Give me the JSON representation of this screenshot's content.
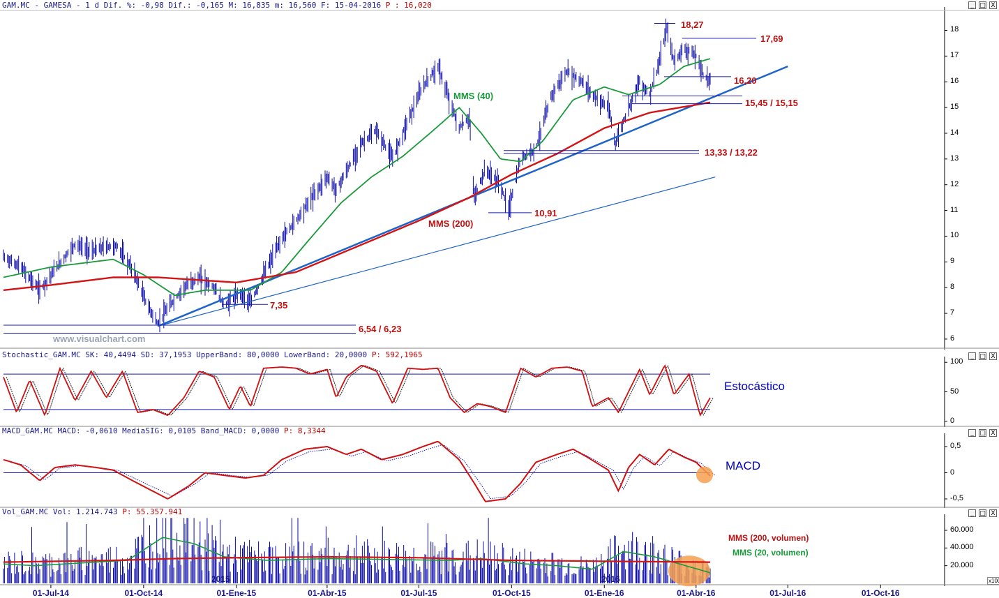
{
  "headers": {
    "price": {
      "series": "GAM.MC - GAMESA -",
      "rest": " 1 d Dif. %: -0,98 Dif.: -0,165 M: 16,835 m: 16,560 F: 15-04-2016",
      "p_label": "P : 16,020"
    },
    "stochastic": {
      "text": "Stochastic_GAM.MC SK: 40,4494 SD: 37,1953 UpperBand: 80,0000 LowerBand: 20,0000",
      "p_label": "P: 592,1965"
    },
    "macd": {
      "text": "MACD_GAM.MC MACD: -0,0610 MediaSIG: 0,0105 Band_MACD: 0,0000",
      "p_label": "P: 8,3344"
    },
    "volume": {
      "text": "Vol_GAM.MC Vol: 1.214.743",
      "p_label": "P: 55.357.941"
    }
  },
  "window_controls": {
    "minimize": "_",
    "maximize": "□",
    "close": "X"
  },
  "watermark": "www.visualchart.com",
  "x_axis_labels": [
    "01-Jul-14",
    "01-Oct-14",
    "01-Ene-15",
    "01-Abr-15",
    "01-Jul-15",
    "01-Oct-15",
    "01-Ene-16",
    "01-Abr-16",
    "01-Jul-16",
    "01-Oct-16"
  ],
  "year_markers": [
    "2015",
    "2016"
  ],
  "volume_unit": "x100",
  "colors": {
    "bars": "#0a0aa8",
    "mms40": "#1a9a3a",
    "mms200": "#d41414",
    "trend": "#1e64c8",
    "level_text": "#c01010",
    "axis_text": "#1a1a8c",
    "highlight": "#f5a050"
  },
  "chart_data": [
    {
      "type": "ohlc",
      "panel": "price",
      "ylim": [
        5.7,
        18.8
      ],
      "yticks": [
        6,
        7,
        8,
        9,
        10,
        11,
        12,
        13,
        14,
        15,
        16,
        17,
        18
      ],
      "date_range": [
        "2014-05-15",
        "2016-04-15"
      ],
      "close_points": [
        [
          "2014-05-15",
          9.2
        ],
        [
          "2014-06-01",
          8.8
        ],
        [
          "2014-06-20",
          7.9
        ],
        [
          "2014-07-05",
          8.7
        ],
        [
          "2014-07-25",
          9.7
        ],
        [
          "2014-08-10",
          9.4
        ],
        [
          "2014-08-25",
          9.6
        ],
        [
          "2014-09-05",
          9.6
        ],
        [
          "2014-09-20",
          8.7
        ],
        [
          "2014-10-05",
          7.3
        ],
        [
          "2014-10-15",
          6.6
        ],
        [
          "2014-10-25",
          7.2
        ],
        [
          "2014-11-10",
          8.0
        ],
        [
          "2014-11-25",
          8.4
        ],
        [
          "2014-12-10",
          8.0
        ],
        [
          "2014-12-20",
          7.3
        ],
        [
          "2015-01-05",
          7.8
        ],
        [
          "2015-01-15",
          7.4
        ],
        [
          "2015-02-01",
          8.8
        ],
        [
          "2015-02-15",
          9.9
        ],
        [
          "2015-03-01",
          10.6
        ],
        [
          "2015-03-15",
          11.4
        ],
        [
          "2015-04-01",
          12.3
        ],
        [
          "2015-04-10",
          11.8
        ],
        [
          "2015-04-20",
          12.5
        ],
        [
          "2015-05-05",
          13.6
        ],
        [
          "2015-05-20",
          14.1
        ],
        [
          "2015-06-05",
          13.0
        ],
        [
          "2015-06-20",
          14.5
        ],
        [
          "2015-07-05",
          15.8
        ],
        [
          "2015-07-20",
          16.6
        ],
        [
          "2015-08-01",
          15.2
        ],
        [
          "2015-08-10",
          14.2
        ],
        [
          "2015-08-20",
          14.6
        ],
        [
          "2015-08-25",
          11.5
        ],
        [
          "2015-09-05",
          12.6
        ],
        [
          "2015-09-20",
          12.0
        ],
        [
          "2015-09-28",
          11.0
        ],
        [
          "2015-10-10",
          13.0
        ],
        [
          "2015-10-25",
          13.4
        ],
        [
          "2015-11-10",
          15.5
        ],
        [
          "2015-11-25",
          16.4
        ],
        [
          "2015-12-10",
          16.0
        ],
        [
          "2015-12-20",
          15.5
        ],
        [
          "2016-01-05",
          15.0
        ],
        [
          "2016-01-12",
          13.6
        ],
        [
          "2016-01-25",
          15.0
        ],
        [
          "2016-02-05",
          16.0
        ],
        [
          "2016-02-15",
          15.5
        ],
        [
          "2016-02-25",
          16.8
        ],
        [
          "2016-03-03",
          18.1
        ],
        [
          "2016-03-10",
          16.8
        ],
        [
          "2016-03-20",
          17.3
        ],
        [
          "2016-04-01",
          17.0
        ],
        [
          "2016-04-08",
          16.3
        ],
        [
          "2016-04-15",
          16.0
        ]
      ],
      "series": [
        {
          "name": "MMS (40)",
          "points": [
            [
              "2014-05-15",
              8.4
            ],
            [
              "2014-07-01",
              8.8
            ],
            [
              "2014-09-01",
              9.1
            ],
            [
              "2014-10-01",
              8.5
            ],
            [
              "2014-11-01",
              7.7
            ],
            [
              "2014-12-01",
              7.9
            ],
            [
              "2015-01-15",
              7.9
            ],
            [
              "2015-02-15",
              8.6
            ],
            [
              "2015-03-15",
              9.9
            ],
            [
              "2015-04-15",
              11.3
            ],
            [
              "2015-05-15",
              12.3
            ],
            [
              "2015-06-15",
              13.1
            ],
            [
              "2015-07-15",
              14.1
            ],
            [
              "2015-08-10",
              15.0
            ],
            [
              "2015-09-01",
              14.0
            ],
            [
              "2015-09-20",
              13.0
            ],
            [
              "2015-10-10",
              12.9
            ],
            [
              "2015-11-01",
              13.7
            ],
            [
              "2015-12-01",
              15.3
            ],
            [
              "2016-01-01",
              15.8
            ],
            [
              "2016-01-25",
              15.5
            ],
            [
              "2016-02-25",
              15.9
            ],
            [
              "2016-03-20",
              16.6
            ],
            [
              "2016-04-15",
              16.9
            ]
          ]
        },
        {
          "name": "MMS (200)",
          "points": [
            [
              "2014-05-15",
              7.9
            ],
            [
              "2014-07-01",
              8.1
            ],
            [
              "2014-09-01",
              8.4
            ],
            [
              "2014-10-15",
              8.4
            ],
            [
              "2015-01-01",
              8.2
            ],
            [
              "2015-03-01",
              8.6
            ],
            [
              "2015-05-01",
              9.6
            ],
            [
              "2015-07-01",
              10.6
            ],
            [
              "2015-08-20",
              11.5
            ],
            [
              "2015-10-01",
              12.4
            ],
            [
              "2015-11-15",
              13.2
            ],
            [
              "2016-01-01",
              14.2
            ],
            [
              "2016-02-15",
              14.8
            ],
            [
              "2016-04-15",
              15.2
            ]
          ]
        }
      ],
      "trendlines": [
        {
          "from": [
            "2014-10-15",
            6.5
          ],
          "to": [
            "2016-07-01",
            16.6
          ]
        },
        {
          "from": [
            "2014-10-15",
            6.5
          ],
          "to": [
            "2016-04-20",
            12.3
          ]
        }
      ],
      "levels": [
        {
          "label": "18,27",
          "value": 18.27
        },
        {
          "label": "17,69",
          "value": 17.69
        },
        {
          "label": "16,20",
          "value": 16.2
        },
        {
          "label": "15,45 / 15,15",
          "values": [
            15.45,
            15.15
          ]
        },
        {
          "label": "13,33 / 13,22",
          "values": [
            13.33,
            13.22
          ]
        },
        {
          "label": "10,91",
          "value": 10.91
        },
        {
          "label": "7,35",
          "value": 7.35
        },
        {
          "label": "6,54 / 6,23",
          "values": [
            6.54,
            6.23
          ]
        }
      ],
      "annotations": [
        "MMS (40)",
        "MMS (200)"
      ]
    },
    {
      "type": "line",
      "panel": "stochastic",
      "ylim": [
        -5,
        105
      ],
      "yticks": [
        0,
        50,
        100
      ],
      "bands": [
        80,
        20
      ],
      "annotation": "Estocástico",
      "series": [
        {
          "name": "SK",
          "points": [
            [
              "2014-05-15",
              75
            ],
            [
              "2014-05-28",
              15
            ],
            [
              "2014-06-10",
              70
            ],
            [
              "2014-06-25",
              10
            ],
            [
              "2014-07-10",
              90
            ],
            [
              "2014-07-25",
              35
            ],
            [
              "2014-08-10",
              85
            ],
            [
              "2014-08-25",
              40
            ],
            [
              "2014-09-10",
              85
            ],
            [
              "2014-09-25",
              15
            ],
            [
              "2014-10-10",
              20
            ],
            [
              "2014-10-25",
              10
            ],
            [
              "2014-11-10",
              40
            ],
            [
              "2014-11-25",
              85
            ],
            [
              "2014-12-10",
              75
            ],
            [
              "2014-12-25",
              20
            ],
            [
              "2015-01-05",
              60
            ],
            [
              "2015-01-15",
              25
            ],
            [
              "2015-01-28",
              90
            ],
            [
              "2015-02-15",
              92
            ],
            [
              "2015-03-01",
              90
            ],
            [
              "2015-03-15",
              80
            ],
            [
              "2015-04-01",
              88
            ],
            [
              "2015-04-10",
              40
            ],
            [
              "2015-04-20",
              75
            ],
            [
              "2015-05-05",
              95
            ],
            [
              "2015-05-20",
              85
            ],
            [
              "2015-06-05",
              30
            ],
            [
              "2015-06-20",
              90
            ],
            [
              "2015-07-05",
              88
            ],
            [
              "2015-07-20",
              90
            ],
            [
              "2015-08-01",
              40
            ],
            [
              "2015-08-15",
              15
            ],
            [
              "2015-08-28",
              30
            ],
            [
              "2015-09-10",
              25
            ],
            [
              "2015-09-25",
              15
            ],
            [
              "2015-10-10",
              90
            ],
            [
              "2015-10-25",
              75
            ],
            [
              "2015-11-10",
              90
            ],
            [
              "2015-11-25",
              92
            ],
            [
              "2015-12-10",
              85
            ],
            [
              "2015-12-20",
              25
            ],
            [
              "2016-01-05",
              40
            ],
            [
              "2016-01-15",
              15
            ],
            [
              "2016-01-25",
              50
            ],
            [
              "2016-02-05",
              88
            ],
            [
              "2016-02-15",
              45
            ],
            [
              "2016-03-01",
              95
            ],
            [
              "2016-03-10",
              45
            ],
            [
              "2016-03-25",
              80
            ],
            [
              "2016-04-05",
              10
            ],
            [
              "2016-04-15",
              40
            ]
          ]
        }
      ]
    },
    {
      "type": "line",
      "panel": "macd",
      "ylim": [
        -0.62,
        0.7
      ],
      "yticks": [
        0.5,
        0,
        -0.5
      ],
      "ytick_labels": [
        "0,5",
        "0",
        "-0,5"
      ],
      "annotation": "MACD",
      "series": [
        {
          "name": "MACD",
          "points": [
            [
              "2014-05-15",
              0.25
            ],
            [
              "2014-06-01",
              0.15
            ],
            [
              "2014-06-20",
              -0.15
            ],
            [
              "2014-07-05",
              0.1
            ],
            [
              "2014-07-25",
              0.15
            ],
            [
              "2014-08-15",
              0.1
            ],
            [
              "2014-09-01",
              0.05
            ],
            [
              "2014-09-20",
              -0.15
            ],
            [
              "2014-10-10",
              -0.35
            ],
            [
              "2014-10-25",
              -0.5
            ],
            [
              "2014-11-15",
              -0.25
            ],
            [
              "2014-12-01",
              0.0
            ],
            [
              "2014-12-20",
              -0.05
            ],
            [
              "2015-01-10",
              -0.1
            ],
            [
              "2015-01-28",
              -0.05
            ],
            [
              "2015-02-15",
              0.25
            ],
            [
              "2015-03-10",
              0.45
            ],
            [
              "2015-04-01",
              0.5
            ],
            [
              "2015-04-20",
              0.35
            ],
            [
              "2015-05-05",
              0.45
            ],
            [
              "2015-05-25",
              0.25
            ],
            [
              "2015-06-15",
              0.35
            ],
            [
              "2015-07-05",
              0.5
            ],
            [
              "2015-07-20",
              0.6
            ],
            [
              "2015-08-10",
              0.25
            ],
            [
              "2015-08-25",
              -0.2
            ],
            [
              "2015-09-05",
              -0.55
            ],
            [
              "2015-09-25",
              -0.5
            ],
            [
              "2015-10-10",
              -0.2
            ],
            [
              "2015-10-25",
              0.2
            ],
            [
              "2015-11-15",
              0.35
            ],
            [
              "2015-12-01",
              0.45
            ],
            [
              "2015-12-15",
              0.3
            ],
            [
              "2016-01-05",
              0.05
            ],
            [
              "2016-01-15",
              -0.35
            ],
            [
              "2016-01-25",
              0.1
            ],
            [
              "2016-02-05",
              0.35
            ],
            [
              "2016-02-20",
              0.15
            ],
            [
              "2016-03-05",
              0.45
            ],
            [
              "2016-03-20",
              0.3
            ],
            [
              "2016-04-01",
              0.2
            ],
            [
              "2016-04-15",
              -0.06
            ]
          ]
        }
      ]
    },
    {
      "type": "bar",
      "panel": "volume",
      "ylim": [
        0,
        75000
      ],
      "yticks": [
        20000,
        40000,
        60000
      ],
      "ytick_labels": [
        "20.000",
        "40.000",
        "60.000"
      ],
      "series": [
        {
          "name": "MMS (200, volumen)",
          "points": [
            [
              "2014-05-15",
              24000
            ],
            [
              "2014-09-01",
              26000
            ],
            [
              "2014-11-01",
              28000
            ],
            [
              "2015-01-01",
              29000
            ],
            [
              "2015-04-01",
              30000
            ],
            [
              "2015-07-01",
              29000
            ],
            [
              "2015-10-01",
              26000
            ],
            [
              "2016-01-01",
              25000
            ],
            [
              "2016-04-15",
              24000
            ]
          ]
        },
        {
          "name": "MMS (20, volumen)",
          "points": [
            [
              "2014-05-15",
              22000
            ],
            [
              "2014-06-15",
              20000
            ],
            [
              "2014-07-15",
              22000
            ],
            [
              "2014-08-15",
              24000
            ],
            [
              "2014-09-15",
              26000
            ],
            [
              "2014-10-20",
              52000
            ],
            [
              "2014-11-20",
              45000
            ],
            [
              "2014-12-20",
              30000
            ],
            [
              "2015-02-01",
              26000
            ],
            [
              "2015-04-01",
              28000
            ],
            [
              "2015-06-01",
              27000
            ],
            [
              "2015-08-01",
              26000
            ],
            [
              "2015-09-01",
              28000
            ],
            [
              "2015-10-15",
              22000
            ],
            [
              "2015-11-15",
              20000
            ],
            [
              "2015-12-20",
              16000
            ],
            [
              "2016-01-20",
              36000
            ],
            [
              "2016-02-20",
              30000
            ],
            [
              "2016-04-15",
              12000
            ]
          ]
        }
      ]
    }
  ]
}
